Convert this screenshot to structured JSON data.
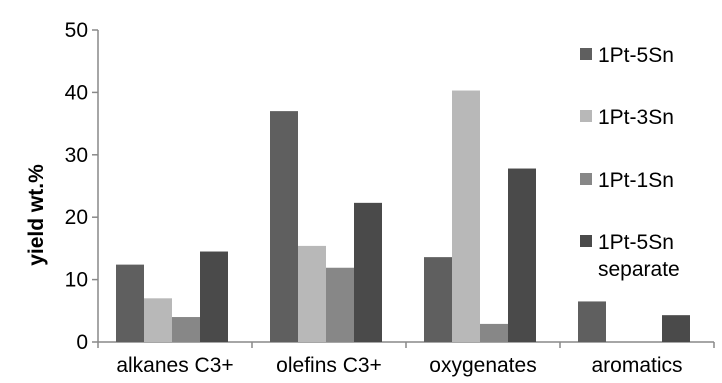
{
  "chart_data": {
    "type": "bar",
    "title": "",
    "xlabel": "",
    "ylabel": "yield wt.%",
    "ylim": [
      0,
      50
    ],
    "yticks": [
      0,
      10,
      20,
      30,
      40,
      50
    ],
    "categories": [
      "alkanes C3+",
      "olefins C3+",
      "oxygenates",
      "aromatics"
    ],
    "series": [
      {
        "name": "1Pt-5Sn",
        "color": "#5f5f5f",
        "values": [
          12.4,
          37.0,
          13.6,
          6.5
        ]
      },
      {
        "name": "1Pt-3Sn",
        "color": "#b8b8b8",
        "values": [
          7.0,
          15.4,
          40.3,
          0
        ]
      },
      {
        "name": "1Pt-1Sn",
        "color": "#878787",
        "values": [
          4.0,
          11.9,
          2.9,
          0
        ]
      },
      {
        "name": "1Pt-5Sn separate",
        "name_lines": [
          "1Pt-5Sn",
          "separate"
        ],
        "color": "#4a4a4a",
        "values": [
          14.5,
          22.3,
          27.8,
          4.3
        ]
      }
    ],
    "grid": false,
    "legend_position": "right"
  }
}
